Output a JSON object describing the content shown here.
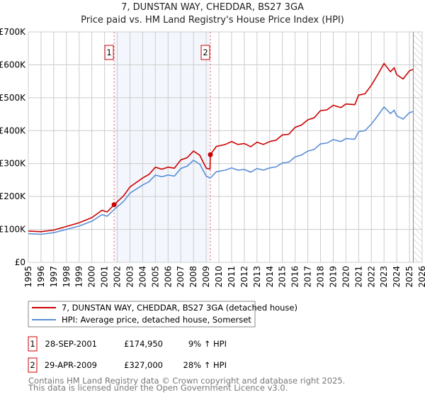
{
  "chart_data": {
    "type": "line",
    "title": "7, DUNSTAN WAY, CHEDDAR, BS27 3GA",
    "subtitle": "Price paid vs. HM Land Registry's House Price Index (HPI)",
    "xlim": [
      1995,
      2026
    ],
    "ylim": [
      0,
      700000
    ],
    "x_ticks": [
      "1995",
      "1996",
      "1997",
      "1998",
      "1999",
      "2000",
      "2001",
      "2002",
      "2003",
      "2004",
      "2005",
      "2006",
      "2007",
      "2008",
      "2009",
      "2010",
      "2011",
      "2012",
      "2013",
      "2014",
      "2015",
      "2016",
      "2017",
      "2018",
      "2019",
      "2020",
      "2021",
      "2022",
      "2023",
      "2024",
      "2025",
      "2026"
    ],
    "y_ticks": [
      {
        "v": 0,
        "label": "£0"
      },
      {
        "v": 100000,
        "label": "£100K"
      },
      {
        "v": 200000,
        "label": "£200K"
      },
      {
        "v": 300000,
        "label": "£300K"
      },
      {
        "v": 400000,
        "label": "£400K"
      },
      {
        "v": 500000,
        "label": "£500K"
      },
      {
        "v": 600000,
        "label": "£600K"
      },
      {
        "v": 700000,
        "label": "£700K"
      }
    ],
    "grid": true,
    "shaded_period": [
      2001.75,
      2009.33
    ],
    "forecast_hatch_from": 2025.3,
    "x": [
      1995,
      1996,
      1997,
      1998,
      1999,
      2000,
      2000.8,
      2001.2,
      2001.75,
      2002.5,
      2003,
      2004,
      2004.5,
      2005,
      2005.5,
      2006,
      2006.5,
      2007,
      2007.5,
      2008,
      2008.5,
      2009,
      2009.3,
      2009.33,
      2009.8,
      2010.5,
      2011,
      2011.5,
      2012,
      2012.5,
      2013,
      2013.5,
      2014,
      2014.5,
      2015,
      2015.5,
      2016,
      2016.5,
      2017,
      2017.5,
      2018,
      2018.5,
      2019,
      2019.6,
      2020,
      2020.7,
      2021,
      2021.5,
      2022,
      2022.5,
      2023,
      2023.5,
      2023.8,
      2024,
      2024.5,
      2025,
      2025.3
    ],
    "series": [
      {
        "name": "7, DUNSTAN WAY, CHEDDAR, BS27 3GA (detached house)",
        "color": "#cc0000",
        "values": [
          95000,
          93000,
          98000,
          109000,
          120000,
          136000,
          158000,
          153000,
          175000,
          202000,
          229000,
          256000,
          267000,
          289000,
          283000,
          289000,
          286000,
          311000,
          318000,
          338000,
          325000,
          286000,
          283000,
          327000,
          352000,
          358000,
          367000,
          358000,
          361000,
          351000,
          365000,
          358000,
          367000,
          371000,
          387000,
          389000,
          410000,
          417000,
          433000,
          439000,
          461000,
          463000,
          477000,
          470000,
          481000,
          479000,
          508000,
          512000,
          538000,
          570000,
          604000,
          579000,
          591000,
          570000,
          557000,
          582000,
          586000
        ]
      },
      {
        "name": "HPI: Average price, detached house, Somerset",
        "color": "#5b8fd6",
        "values": [
          87000,
          85000,
          90000,
          100000,
          110000,
          125000,
          145000,
          140000,
          160000,
          185000,
          210000,
          235000,
          245000,
          265000,
          260000,
          265000,
          262000,
          285000,
          292000,
          310000,
          298000,
          262000,
          256000,
          256000,
          275000,
          280000,
          287000,
          280000,
          282000,
          274000,
          285000,
          280000,
          287000,
          290000,
          302000,
          304000,
          320000,
          326000,
          338000,
          343000,
          360000,
          362000,
          373000,
          367000,
          376000,
          374000,
          397000,
          400000,
          420000,
          445000,
          472000,
          452000,
          462000,
          445000,
          435000,
          455000,
          458000
        ]
      }
    ],
    "sales": [
      {
        "label": "1",
        "x": 2001.75,
        "value": 174950,
        "date": "28-SEP-2001",
        "price": "£174,950",
        "hpi": "9% ↑ HPI"
      },
      {
        "label": "2",
        "x": 2009.33,
        "value": 327000,
        "date": "29-APR-2009",
        "price": "£327,000",
        "hpi": "28% ↑ HPI"
      }
    ],
    "legend_position": "bottom"
  },
  "footer": {
    "line1": "Contains HM Land Registry data © Crown copyright and database right 2025.",
    "line2": "This data is licensed under the Open Government Licence v3.0."
  }
}
